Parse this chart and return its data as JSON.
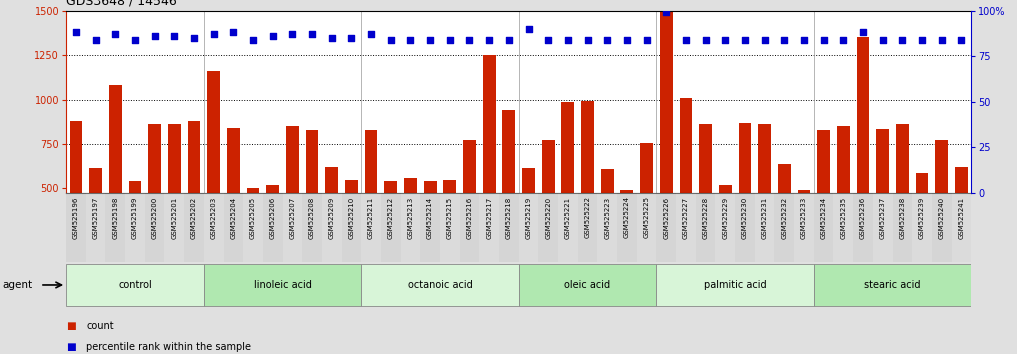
{
  "title": "GDS3648 / 14546",
  "samples": [
    "GSM525196",
    "GSM525197",
    "GSM525198",
    "GSM525199",
    "GSM525200",
    "GSM525201",
    "GSM525202",
    "GSM525203",
    "GSM525204",
    "GSM525205",
    "GSM525206",
    "GSM525207",
    "GSM525208",
    "GSM525209",
    "GSM525210",
    "GSM525211",
    "GSM525212",
    "GSM525213",
    "GSM525214",
    "GSM525215",
    "GSM525216",
    "GSM525217",
    "GSM525218",
    "GSM525219",
    "GSM525220",
    "GSM525221",
    "GSM525222",
    "GSM525223",
    "GSM525224",
    "GSM525225",
    "GSM525226",
    "GSM525227",
    "GSM525228",
    "GSM525229",
    "GSM525230",
    "GSM525231",
    "GSM525232",
    "GSM525233",
    "GSM525234",
    "GSM525235",
    "GSM525236",
    "GSM525237",
    "GSM525238",
    "GSM525239",
    "GSM525240",
    "GSM525241"
  ],
  "counts": [
    880,
    615,
    1080,
    540,
    860,
    860,
    880,
    1160,
    840,
    500,
    520,
    850,
    830,
    620,
    550,
    830,
    540,
    560,
    540,
    545,
    775,
    1250,
    940,
    615,
    775,
    985,
    990,
    610,
    490,
    755,
    1490,
    1010,
    865,
    520,
    870,
    860,
    635,
    490,
    830,
    850,
    1350,
    835,
    860,
    585,
    775,
    620
  ],
  "percentile_ranks": [
    88,
    84,
    87,
    84,
    86,
    86,
    85,
    87,
    88,
    84,
    86,
    87,
    87,
    85,
    85,
    87,
    84,
    84,
    84,
    84,
    84,
    84,
    84,
    90,
    84,
    84,
    84,
    84,
    84,
    84,
    99,
    84,
    84,
    84,
    84,
    84,
    84,
    84,
    84,
    84,
    88,
    84,
    84,
    84,
    84,
    84
  ],
  "groups": [
    {
      "name": "control",
      "start": 0,
      "end": 7
    },
    {
      "name": "linoleic acid",
      "start": 7,
      "end": 15
    },
    {
      "name": "octanoic acid",
      "start": 15,
      "end": 23
    },
    {
      "name": "oleic acid",
      "start": 23,
      "end": 30
    },
    {
      "name": "palmitic acid",
      "start": 30,
      "end": 38
    },
    {
      "name": "stearic acid",
      "start": 38,
      "end": 46
    }
  ],
  "bar_color": "#cc2200",
  "dot_color": "#0000cc",
  "ylim_left": [
    475,
    1500
  ],
  "ylim_right": [
    0,
    100
  ],
  "yticks_left": [
    500,
    750,
    1000,
    1250,
    1500
  ],
  "yticks_right": [
    0,
    25,
    50,
    75,
    100
  ],
  "background_color": "#e0e0e0",
  "plot_bg_color": "#ffffff",
  "group_colors": [
    "#d8f5d8",
    "#b0e8b0",
    "#d8f5d8",
    "#b0e8b0",
    "#d8f5d8",
    "#b0e8b0"
  ],
  "agent_label": "agent",
  "legend_count_label": "count",
  "legend_pct_label": "percentile rank within the sample"
}
